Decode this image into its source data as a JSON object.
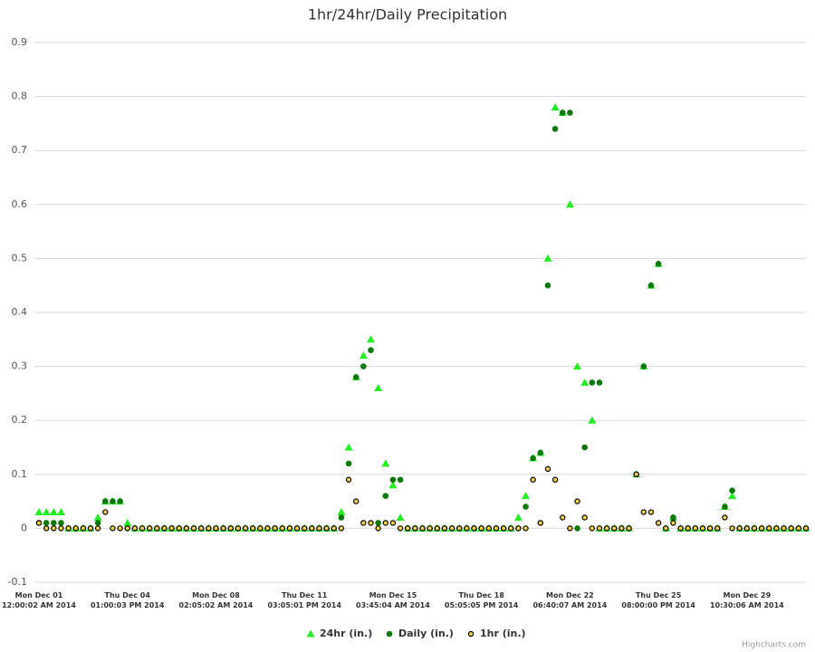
{
  "chart_data": {
    "type": "scatter",
    "title": "1hr/24hr/Daily Precipitation",
    "categories": [
      "Mon Dec 01 12:00:02 AM 2014",
      null,
      null,
      null,
      null,
      null,
      null,
      null,
      null,
      null,
      null,
      null,
      "Thu Dec 04 01:00:03 PM 2014",
      null,
      null,
      null,
      null,
      null,
      null,
      null,
      null,
      null,
      null,
      null,
      "Mon Dec 08 02:05:02 AM 2014",
      null,
      null,
      null,
      null,
      null,
      null,
      null,
      null,
      null,
      null,
      null,
      "Thu Dec 11 03:05:01 PM 2014",
      null,
      null,
      null,
      null,
      null,
      null,
      null,
      null,
      null,
      null,
      null,
      "Mon Dec 15 03:45:04 AM 2014",
      null,
      null,
      null,
      null,
      null,
      null,
      null,
      null,
      null,
      null,
      null,
      "Thu Dec 18 05:05:05 PM 2014",
      null,
      null,
      null,
      null,
      null,
      null,
      null,
      null,
      null,
      null,
      null,
      "Mon Dec 22 06:40:07 AM 2014",
      null,
      null,
      null,
      null,
      null,
      null,
      null,
      null,
      null,
      null,
      null,
      "Thu Dec 25 08:00:00 PM 2014",
      null,
      null,
      null,
      null,
      null,
      null,
      null,
      null,
      null,
      null,
      null,
      "Mon Dec 29 10:30:06 AM 2014",
      null,
      null,
      null,
      null,
      null,
      null,
      null,
      null
    ],
    "series": [
      {
        "name": "24hr (in.)",
        "color": "#22ee22",
        "marker": "triangle",
        "values": [
          0.03,
          0.03,
          0.03,
          0.03,
          0,
          0,
          0,
          0,
          0.02,
          0.05,
          0.05,
          0.05,
          0.01,
          0,
          0,
          0,
          0,
          0,
          0,
          0,
          0,
          0,
          0,
          0,
          0,
          0,
          0,
          0,
          0,
          0,
          0,
          0,
          0,
          0,
          0,
          0,
          0,
          0,
          0,
          0,
          0,
          0.03,
          0.15,
          0.28,
          0.32,
          0.35,
          0.26,
          0.12,
          0.08,
          0.02,
          0,
          0,
          0,
          0,
          0,
          0,
          0,
          0,
          0,
          0,
          0,
          0,
          0,
          0,
          0,
          0.02,
          0.06,
          0.13,
          0.14,
          0.5,
          0.78,
          0.77,
          0.6,
          0.3,
          0.27,
          0.2,
          0,
          0,
          0,
          0,
          0,
          0.1,
          0.3,
          0.45,
          0.49,
          0,
          0.02,
          0,
          0,
          0,
          0,
          0,
          0,
          0.04,
          0.06,
          0,
          0,
          0,
          0,
          0,
          0,
          0,
          0,
          0,
          0
        ]
      },
      {
        "name": "Daily (in.)",
        "color": "#0b7a0b",
        "marker": "circle",
        "values": [
          0.01,
          0.01,
          0.01,
          0.01,
          0,
          0,
          0,
          0,
          0.01,
          0.05,
          0.05,
          0.05,
          0,
          0,
          0,
          0,
          0,
          0,
          0,
          0,
          0,
          0,
          0,
          0,
          0,
          0,
          0,
          0,
          0,
          0,
          0,
          0,
          0,
          0,
          0,
          0,
          0,
          0,
          0,
          0,
          0,
          0.02,
          0.12,
          0.28,
          0.3,
          0.33,
          0.01,
          0.06,
          0.09,
          0.09,
          0,
          0,
          0,
          0,
          0,
          0,
          0,
          0,
          0,
          0,
          0,
          0,
          0,
          0,
          0,
          0,
          0.04,
          0.13,
          0.14,
          0.45,
          0.74,
          0.77,
          0.77,
          0,
          0.15,
          0.27,
          0.27,
          0,
          0,
          0,
          0,
          0.1,
          0.3,
          0.45,
          0.49,
          0,
          0.02,
          0,
          0,
          0,
          0,
          0,
          0,
          0.04,
          0.07,
          0,
          0,
          0,
          0,
          0,
          0,
          0,
          0,
          0,
          0
        ]
      },
      {
        "name": "1hr (in.)",
        "color": "#f2d24a",
        "marker": "ring",
        "values": [
          0.01,
          0,
          0,
          0,
          0,
          0,
          0,
          0,
          0,
          0.03,
          0,
          0,
          0,
          0,
          0,
          0,
          0,
          0,
          0,
          0,
          0,
          0,
          0,
          0,
          0,
          0,
          0,
          0,
          0,
          0,
          0,
          0,
          0,
          0,
          0,
          0,
          0,
          0,
          0,
          0,
          0,
          0,
          0.09,
          0.05,
          0.01,
          0.01,
          0,
          0.01,
          0.01,
          0,
          0,
          0,
          0,
          0,
          0,
          0,
          0,
          0,
          0,
          0,
          0,
          0,
          0,
          0,
          0,
          0,
          0,
          0.09,
          0.01,
          0.11,
          0.09,
          0.02,
          0,
          0.05,
          0.02,
          0,
          0,
          0,
          0,
          0,
          0,
          0.1,
          0.03,
          0.03,
          0.01,
          0,
          0.01,
          0,
          0,
          0,
          0,
          0,
          0,
          0.02,
          0,
          0,
          0,
          0,
          0,
          0,
          0,
          0,
          0,
          0,
          0
        ]
      }
    ],
    "ylim": [
      -0.1,
      0.9
    ],
    "yticks": [
      -0.1,
      0,
      0.1,
      0.2,
      0.3,
      0.4,
      0.5,
      0.6,
      0.7,
      0.8,
      0.9
    ],
    "grid": true,
    "legend": "bottom",
    "credits": "Highcharts.com"
  }
}
